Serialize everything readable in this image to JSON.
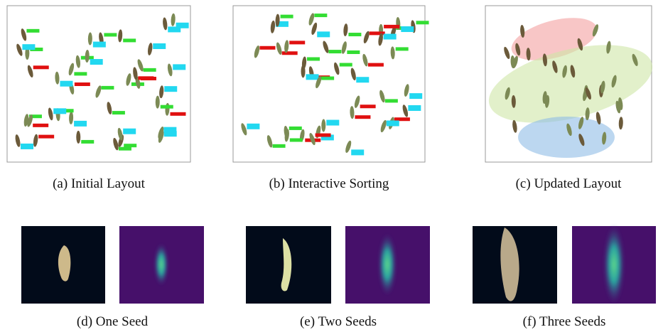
{
  "panels": [
    {
      "caption": "(a) Initial Layout"
    },
    {
      "caption": "(b) Interactive Sorting"
    },
    {
      "caption": "(c) Updated Layout"
    },
    {
      "caption": "(d) One Seed"
    },
    {
      "caption": "(e) Two Seeds"
    },
    {
      "caption": "(f) Three Seeds"
    }
  ]
}
